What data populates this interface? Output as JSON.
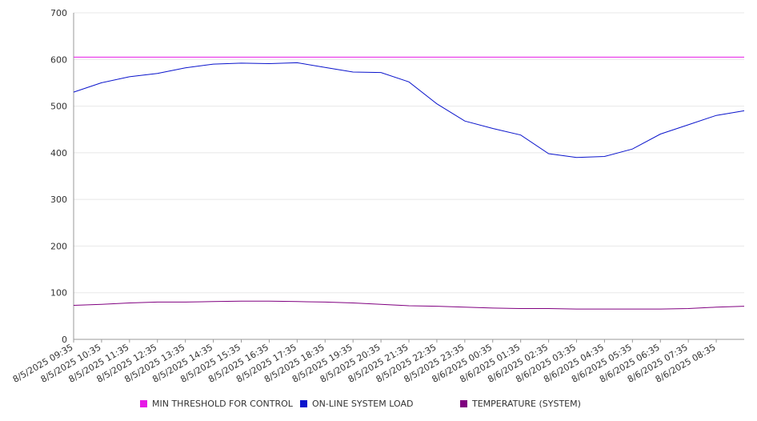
{
  "chart_data": {
    "type": "line",
    "title": "",
    "xlabel": "",
    "ylabel": "",
    "ylim": [
      0,
      700
    ],
    "yticks": [
      0,
      100,
      200,
      300,
      400,
      500,
      600,
      700
    ],
    "grid": true,
    "legend_position": "bottom",
    "x_tick_labels": [
      "8/5/2025 09:35",
      "8/5/2025 10:35",
      "8/5/2025 11:35",
      "8/5/2025 12:35",
      "8/5/2025 13:35",
      "8/5/2025 14:35",
      "8/5/2025 15:35",
      "8/5/2025 16:35",
      "8/5/2025 17:35",
      "8/5/2025 18:35",
      "8/5/2025 19:35",
      "8/5/2025 20:35",
      "8/5/2025 21:35",
      "8/5/2025 22:35",
      "8/5/2025 23:35",
      "8/6/2025 00:35",
      "8/6/2025 01:35",
      "8/6/2025 02:35",
      "8/6/2025 03:35",
      "8/6/2025 04:35",
      "8/6/2025 05:35",
      "8/6/2025 06:35",
      "8/6/2025 07:35",
      "8/6/2025 08:35"
    ],
    "x": [
      "8/5/2025 09:35",
      "8/5/2025 10:35",
      "8/5/2025 11:35",
      "8/5/2025 12:35",
      "8/5/2025 13:35",
      "8/5/2025 14:35",
      "8/5/2025 15:35",
      "8/5/2025 16:35",
      "8/5/2025 17:35",
      "8/5/2025 18:35",
      "8/5/2025 19:35",
      "8/5/2025 20:35",
      "8/5/2025 21:35",
      "8/5/2025 22:35",
      "8/5/2025 23:35",
      "8/6/2025 00:35",
      "8/6/2025 01:35",
      "8/6/2025 02:35",
      "8/6/2025 03:35",
      "8/6/2025 04:35",
      "8/6/2025 05:35",
      "8/6/2025 06:35",
      "8/6/2025 07:35",
      "8/6/2025 08:35",
      "8/6/2025 09:35"
    ],
    "series": [
      {
        "name": "MIN THRESHOLD FOR CONTROL",
        "color": "#e619e6",
        "values": [
          605,
          605,
          605,
          605,
          605,
          605,
          605,
          605,
          605,
          605,
          605,
          605,
          605,
          605,
          605,
          605,
          605,
          605,
          605,
          605,
          605,
          605,
          605,
          605,
          605
        ]
      },
      {
        "name": "ON-LINE SYSTEM LOAD",
        "color": "#0a14cc",
        "values": [
          530,
          550,
          563,
          570,
          582,
          590,
          592,
          591,
          593,
          583,
          573,
          572,
          552,
          505,
          468,
          452,
          438,
          398,
          390,
          392,
          408,
          440,
          460,
          480,
          490
        ]
      },
      {
        "name": "TEMPERATURE (SYSTEM)",
        "color": "#800080",
        "values": [
          73,
          75,
          78,
          80,
          80,
          81,
          82,
          82,
          81,
          80,
          78,
          75,
          72,
          71,
          69,
          67,
          66,
          66,
          65,
          65,
          65,
          65,
          66,
          69,
          71
        ]
      }
    ]
  }
}
